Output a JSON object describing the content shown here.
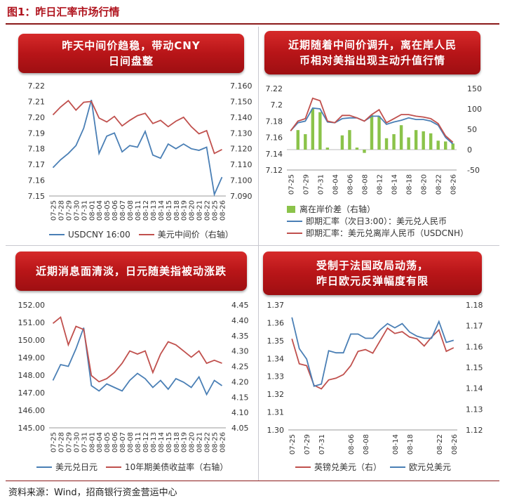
{
  "figure_title": "图1：昨日汇率市场行情",
  "source": "资料来源：Wind，招商银行资金营运中心",
  "colors": {
    "blue": "#4a7fb5",
    "red": "#c0504d",
    "green": "#8bc34a",
    "banner": "#b81518"
  },
  "chart_data": [
    {
      "type": "line",
      "banner_lines": [
        "昨天中间价趋稳，带动CNY",
        "日间盘整"
      ],
      "x": [
        "07-25",
        "07-28",
        "07-29",
        "07-30",
        "07-31",
        "08-01",
        "08-04",
        "08-05",
        "08-06",
        "08-07",
        "08-08",
        "08-11",
        "08-12",
        "08-13",
        "08-14",
        "08-15",
        "08-18",
        "08-19",
        "08-20",
        "08-21",
        "08-22",
        "08-25",
        "08-26"
      ],
      "xlabels": [
        "07-25",
        "07-28",
        "07-29",
        "07-30",
        "07-31",
        "08-01",
        "08-04",
        "08-05",
        "08-06",
        "08-07",
        "08-08",
        "08-11",
        "08-12",
        "08-13",
        "08-14",
        "08-15",
        "08-18",
        "08-19",
        "08-20",
        "08-21",
        "08-22",
        "08-25",
        "08-26"
      ],
      "left_axis": {
        "ylim": [
          7.15,
          7.22
        ],
        "ticks": [
          "7.22",
          "7.21",
          "7.20",
          "7.19",
          "7.18",
          "7.17",
          "7.16",
          "7.15"
        ]
      },
      "right_axis": {
        "ylim": [
          7.09,
          7.16
        ],
        "ticks": [
          "7.160",
          "7.150",
          "7.140",
          "7.130",
          "7.120",
          "7.110",
          "7.100",
          "7.090"
        ]
      },
      "series": [
        {
          "name": "USDCNY 16:00",
          "axis": "left",
          "color": "#4a7fb5",
          "values": [
            7.168,
            7.173,
            7.177,
            7.182,
            7.193,
            7.211,
            7.177,
            7.188,
            7.19,
            7.178,
            7.182,
            7.181,
            7.191,
            7.176,
            7.174,
            7.183,
            7.18,
            7.183,
            7.18,
            7.179,
            7.181,
            7.151,
            7.162
          ]
        },
        {
          "name": "美元中间价（右轴）",
          "axis": "right",
          "color": "#c0504d",
          "values": [
            7.1415,
            7.1465,
            7.1505,
            7.1445,
            7.1495,
            7.15,
            7.1395,
            7.137,
            7.1405,
            7.1345,
            7.138,
            7.141,
            7.1425,
            7.136,
            7.138,
            7.134,
            7.1375,
            7.14,
            7.134,
            7.1295,
            7.1315,
            7.117,
            7.1195
          ]
        }
      ]
    },
    {
      "type": "bar+line",
      "banner_lines": [
        "近期随着中间价调升，离在岸人民",
        "币相对美指出现主动升值行情"
      ],
      "x": [
        "07-25",
        "07-28",
        "07-29",
        "07-30",
        "07-31",
        "08-01",
        "08-04",
        "08-05",
        "08-06",
        "08-07",
        "08-08",
        "08-11",
        "08-12",
        "08-13",
        "08-14",
        "08-15",
        "08-18",
        "08-19",
        "08-20",
        "08-21",
        "08-22",
        "08-25",
        "08-26"
      ],
      "xlabels": [
        "07-25",
        "07-29",
        "07-31",
        "08-04",
        "08-06",
        "08-08",
        "08-12",
        "08-14",
        "08-18",
        "08-20",
        "08-22",
        "08-26"
      ],
      "left_axis": {
        "ylim": [
          7.12,
          7.22
        ],
        "ticks": [
          "7.22",
          "7.2",
          "7.18",
          "7.16",
          "7.14",
          "7.12"
        ]
      },
      "right_axis": {
        "ylim": [
          -50,
          150
        ],
        "ticks": [
          "150",
          "100",
          "50",
          "0",
          "-50"
        ]
      },
      "series": [
        {
          "name": "离在岸价差（右轴）",
          "axis": "right",
          "kind": "bar",
          "color": "#8bc34a",
          "values": [
            0,
            48,
            38,
            100,
            92,
            5,
            0,
            35,
            48,
            5,
            -8,
            85,
            82,
            28,
            38,
            60,
            30,
            48,
            45,
            40,
            22,
            20,
            15
          ]
        },
        {
          "name": "即期汇率（次日3:00）：美元兑人民币",
          "axis": "left",
          "kind": "line",
          "color": "#4a7fb5",
          "values": [
            7.168,
            7.178,
            7.18,
            7.196,
            7.195,
            7.179,
            7.178,
            7.183,
            7.184,
            7.184,
            7.18,
            7.186,
            7.186,
            7.176,
            7.179,
            7.181,
            7.184,
            7.182,
            7.182,
            7.18,
            7.175,
            7.16,
            7.152
          ]
        },
        {
          "name": "即期汇率：美元兑离岸人民币（USDCNH）",
          "axis": "left",
          "kind": "line",
          "color": "#c0504d",
          "values": [
            7.168,
            7.18,
            7.183,
            7.208,
            7.205,
            7.18,
            7.178,
            7.187,
            7.187,
            7.184,
            7.18,
            7.188,
            7.194,
            7.178,
            7.183,
            7.188,
            7.188,
            7.186,
            7.185,
            7.183,
            7.177,
            7.162,
            7.154
          ]
        }
      ]
    },
    {
      "type": "line",
      "banner_lines": [
        "近期消息面清淡，日元随美指被动涨跌"
      ],
      "x": [
        "07-25",
        "07-28",
        "07-29",
        "07-30",
        "07-31",
        "08-01",
        "08-04",
        "08-05",
        "08-06",
        "08-07",
        "08-08",
        "08-11",
        "08-12",
        "08-13",
        "08-14",
        "08-15",
        "08-18",
        "08-19",
        "08-20",
        "08-21",
        "08-22",
        "08-25",
        "08-26"
      ],
      "xlabels": [
        "07-25",
        "07-28",
        "07-29",
        "07-30",
        "07-31",
        "08-01",
        "08-04",
        "08-05",
        "08-06",
        "08-07",
        "08-08",
        "08-11",
        "08-12",
        "08-13",
        "08-14",
        "08-15",
        "08-18",
        "08-19",
        "08-20",
        "08-21",
        "08-22",
        "08-25",
        "08-26"
      ],
      "left_axis": {
        "ylim": [
          145,
          152
        ],
        "ticks": [
          "152.00",
          "151.00",
          "150.00",
          "149.00",
          "148.00",
          "147.00",
          "146.00",
          "145.00"
        ]
      },
      "right_axis": {
        "ylim": [
          4.05,
          4.45
        ],
        "ticks": [
          "4.45",
          "4.40",
          "4.35",
          "4.30",
          "4.25",
          "4.20",
          "4.15",
          "4.10",
          "4.05"
        ]
      },
      "series": [
        {
          "name": "美元兑日元",
          "axis": "left",
          "color": "#4a7fb5",
          "values": [
            147.7,
            148.6,
            148.5,
            149.5,
            150.7,
            147.4,
            147.1,
            147.5,
            147.3,
            147.1,
            147.7,
            148.1,
            147.8,
            147.3,
            147.7,
            147.2,
            147.8,
            147.6,
            147.3,
            147.9,
            146.9,
            147.7,
            147.4
          ]
        },
        {
          "name": "10年期美债收益率（右轴）",
          "axis": "right",
          "color": "#c0504d",
          "values": [
            4.39,
            4.41,
            4.32,
            4.38,
            4.37,
            4.22,
            4.2,
            4.21,
            4.23,
            4.26,
            4.3,
            4.29,
            4.3,
            4.23,
            4.29,
            4.33,
            4.32,
            4.3,
            4.28,
            4.3,
            4.26,
            4.27,
            4.26
          ]
        }
      ]
    },
    {
      "type": "line",
      "banner_lines": [
        "受制于法国政局动荡，",
        "昨日欧元反弹幅度有限"
      ],
      "x": [
        "07-25",
        "07-28",
        "07-29",
        "07-30",
        "07-31",
        "08-01",
        "08-04",
        "08-05",
        "08-06",
        "08-07",
        "08-08",
        "08-11",
        "08-12",
        "08-13",
        "08-14",
        "08-15",
        "08-18",
        "08-19",
        "08-20",
        "08-21",
        "08-22",
        "08-25",
        "08-26"
      ],
      "xlabels": [
        "07-25",
        "07-29",
        "07-31",
        "08-06",
        "08-08",
        "08-14",
        "08-18",
        "08-22",
        "08-26"
      ],
      "left_axis": {
        "ylim": [
          1.3,
          1.37
        ],
        "ticks": [
          "1.37",
          "1.36",
          "1.35",
          "1.34",
          "1.33",
          "1.32",
          "1.31",
          "1.30"
        ]
      },
      "right_axis": {
        "ylim": [
          1.12,
          1.18
        ],
        "ticks": [
          "1.18",
          "1.17",
          "1.16",
          "1.15",
          "1.14",
          "1.13",
          "1.12"
        ]
      },
      "series": [
        {
          "name": "英镑兑美元（右）",
          "axis": "left",
          "color": "#c0504d",
          "values": [
            1.351,
            1.337,
            1.336,
            1.325,
            1.323,
            1.328,
            1.329,
            1.331,
            1.336,
            1.344,
            1.345,
            1.343,
            1.35,
            1.357,
            1.354,
            1.355,
            1.352,
            1.351,
            1.347,
            1.352,
            1.356,
            1.344,
            1.346
          ]
        },
        {
          "name": "欧元兑美元",
          "axis": "right",
          "color": "#4a7fb5",
          "values": [
            1.174,
            1.159,
            1.154,
            1.141,
            1.142,
            1.158,
            1.157,
            1.157,
            1.166,
            1.166,
            1.164,
            1.164,
            1.168,
            1.171,
            1.169,
            1.171,
            1.167,
            1.165,
            1.164,
            1.164,
            1.172,
            1.162,
            1.163
          ]
        }
      ]
    }
  ],
  "legends": [
    [
      [
        {
          "label": "USDCNY 16:00",
          "color": "#4a7fb5",
          "kind": "line"
        },
        {
          "label": "美元中间价（右轴）",
          "color": "#c0504d",
          "kind": "line"
        }
      ]
    ],
    [
      [
        {
          "label": "离在岸价差（右轴）",
          "color": "#8bc34a",
          "kind": "box"
        }
      ],
      [
        {
          "label": "即期汇率（次日3:00）：美元兑人民币",
          "color": "#4a7fb5",
          "kind": "line"
        }
      ],
      [
        {
          "label": "即期汇率：美元兑离岸人民币（USDCNH）",
          "color": "#c0504d",
          "kind": "line"
        }
      ]
    ],
    [
      [
        {
          "label": "美元兑日元",
          "color": "#4a7fb5",
          "kind": "line"
        },
        {
          "label": "10年期美债收益率（右轴）",
          "color": "#c0504d",
          "kind": "line"
        }
      ]
    ],
    [
      [
        {
          "label": "英镑兑美元（右）",
          "color": "#c0504d",
          "kind": "line"
        },
        {
          "label": "欧元兑美元",
          "color": "#4a7fb5",
          "kind": "line"
        }
      ]
    ]
  ]
}
